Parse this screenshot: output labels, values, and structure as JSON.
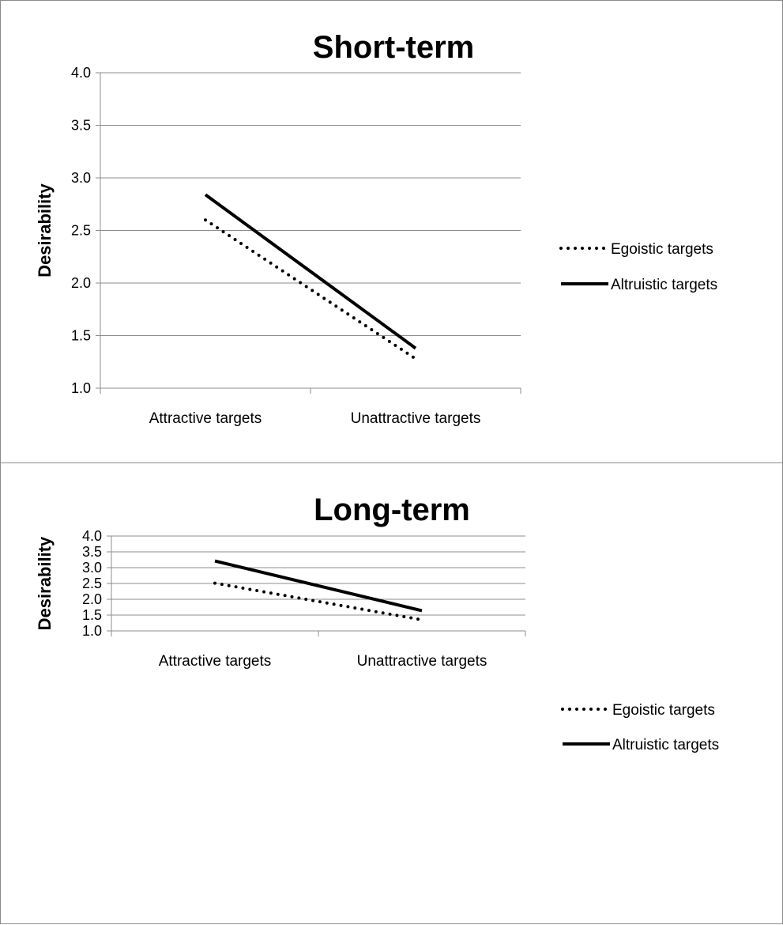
{
  "chart_data": [
    {
      "type": "line",
      "title": "Short-term",
      "xlabel": "",
      "ylabel": "Desirability",
      "ylim": [
        1.0,
        4.0
      ],
      "yticks": [
        "1.0",
        "1.5",
        "2.0",
        "2.5",
        "3.0",
        "3.5",
        "4.0"
      ],
      "grid": true,
      "legend_position": "right",
      "categories": [
        "Attractive targets",
        "Unattractive targets"
      ],
      "series": [
        {
          "name": "Egoistic targets",
          "values": [
            2.6,
            1.28
          ],
          "style": "dotted",
          "color": "#000000"
        },
        {
          "name": "Altruistic targets",
          "values": [
            2.84,
            1.38
          ],
          "style": "solid",
          "color": "#000000"
        }
      ]
    },
    {
      "type": "line",
      "title": "Long-term",
      "xlabel": "",
      "ylabel": "Desirability",
      "ylim": [
        1.0,
        4.0
      ],
      "yticks": [
        "1.0",
        "1.5",
        "2.0",
        "2.5",
        "3.0",
        "3.5",
        "4.0"
      ],
      "grid": true,
      "legend_position": "right",
      "categories": [
        "Attractive targets",
        "Unattractive targets"
      ],
      "series": [
        {
          "name": "Egoistic targets",
          "values": [
            2.51,
            1.35
          ],
          "style": "dotted",
          "color": "#000000"
        },
        {
          "name": "Altruistic targets",
          "values": [
            3.21,
            1.64
          ],
          "style": "solid",
          "color": "#000000"
        }
      ]
    }
  ]
}
